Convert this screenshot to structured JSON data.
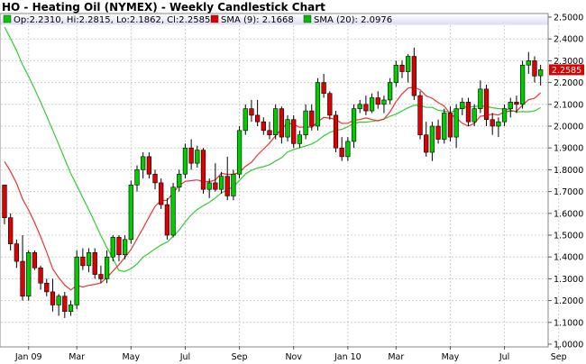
{
  "chart_data": {
    "type": "candlestick",
    "title": "HO - Heating Oil (NYMEX) - Weekly Candlestick Chart",
    "ohlc_label": "Op:2.2310, Hi:2.2815, Lo:2.1862, Cl:2.2585",
    "legend": [
      {
        "name": "SMA (9): 2.1668",
        "color": "#dd0000"
      },
      {
        "name": "SMA (20): 2.0976",
        "color": "#00bb00"
      }
    ],
    "last_price_label": "2.2585",
    "last_price": 2.2585,
    "ylim": [
      1.0,
      2.5
    ],
    "y_ticks": [
      "1.0000",
      "1.1000",
      "1.2000",
      "1.3000",
      "1.4000",
      "1.5000",
      "1.6000",
      "1.7000",
      "1.8000",
      "1.9000",
      "2.0000",
      "2.1000",
      "2.2000",
      "2.3000",
      "2.4000",
      "2.5000"
    ],
    "x_ticks": [
      {
        "label": "Jan 09",
        "week": 4
      },
      {
        "label": "Mar",
        "week": 12
      },
      {
        "label": "May",
        "week": 21
      },
      {
        "label": "Jul",
        "week": 30
      },
      {
        "label": "Sep",
        "week": 39
      },
      {
        "label": "Nov",
        "week": 48
      },
      {
        "label": "Jan 10",
        "week": 57
      },
      {
        "label": "Mar",
        "week": 65
      },
      {
        "label": "May",
        "week": 74
      },
      {
        "label": "Jul",
        "week": 83
      },
      {
        "label": "Sep",
        "week": 92
      }
    ],
    "colors": {
      "up": "#00cc00",
      "down": "#dd0000",
      "sma9": "#ee3333",
      "sma20": "#33cc33",
      "label_box": "#dd0000"
    },
    "candles": [
      [
        1.73,
        1.73,
        1.55,
        1.58
      ],
      [
        1.58,
        1.6,
        1.43,
        1.46
      ],
      [
        1.46,
        1.48,
        1.35,
        1.38
      ],
      [
        1.38,
        1.5,
        1.2,
        1.22
      ],
      [
        1.22,
        1.43,
        1.2,
        1.42
      ],
      [
        1.42,
        1.43,
        1.34,
        1.35
      ],
      [
        1.35,
        1.36,
        1.25,
        1.28
      ],
      [
        1.28,
        1.3,
        1.22,
        1.24
      ],
      [
        1.24,
        1.3,
        1.15,
        1.18
      ],
      [
        1.18,
        1.23,
        1.13,
        1.22
      ],
      [
        1.22,
        1.24,
        1.12,
        1.15
      ],
      [
        1.15,
        1.2,
        1.13,
        1.18
      ],
      [
        1.18,
        1.43,
        1.16,
        1.4
      ],
      [
        1.4,
        1.44,
        1.34,
        1.36
      ],
      [
        1.36,
        1.44,
        1.33,
        1.42
      ],
      [
        1.42,
        1.44,
        1.3,
        1.32
      ],
      [
        1.32,
        1.36,
        1.28,
        1.3
      ],
      [
        1.3,
        1.43,
        1.28,
        1.4
      ],
      [
        1.4,
        1.5,
        1.38,
        1.49
      ],
      [
        1.49,
        1.5,
        1.38,
        1.41
      ],
      [
        1.41,
        1.5,
        1.39,
        1.48
      ],
      [
        1.48,
        1.75,
        1.46,
        1.73
      ],
      [
        1.73,
        1.82,
        1.7,
        1.8
      ],
      [
        1.8,
        1.88,
        1.76,
        1.86
      ],
      [
        1.86,
        1.88,
        1.76,
        1.78
      ],
      [
        1.78,
        1.8,
        1.71,
        1.74
      ],
      [
        1.74,
        1.76,
        1.62,
        1.64
      ],
      [
        1.64,
        1.67,
        1.48,
        1.5
      ],
      [
        1.5,
        1.74,
        1.49,
        1.72
      ],
      [
        1.72,
        1.8,
        1.7,
        1.78
      ],
      [
        1.78,
        1.92,
        1.76,
        1.9
      ],
      [
        1.9,
        1.94,
        1.8,
        1.83
      ],
      [
        1.83,
        1.91,
        1.81,
        1.89
      ],
      [
        1.89,
        1.9,
        1.69,
        1.71
      ],
      [
        1.71,
        1.76,
        1.67,
        1.74
      ],
      [
        1.74,
        1.83,
        1.7,
        1.71
      ],
      [
        1.71,
        1.79,
        1.69,
        1.77
      ],
      [
        1.77,
        1.86,
        1.66,
        1.68
      ],
      [
        1.68,
        1.8,
        1.66,
        1.78
      ],
      [
        1.78,
        2.0,
        1.76,
        1.98
      ],
      [
        1.98,
        2.1,
        1.96,
        2.08
      ],
      [
        2.08,
        2.12,
        2.02,
        2.05
      ],
      [
        2.05,
        2.12,
        2.0,
        2.02
      ],
      [
        2.02,
        2.04,
        1.96,
        1.98
      ],
      [
        1.98,
        2.02,
        1.94,
        1.96
      ],
      [
        1.96,
        2.1,
        1.94,
        2.08
      ],
      [
        2.08,
        2.09,
        1.92,
        1.95
      ],
      [
        1.95,
        2.05,
        1.93,
        2.03
      ],
      [
        2.03,
        2.05,
        1.9,
        1.92
      ],
      [
        1.92,
        1.98,
        1.9,
        1.96
      ],
      [
        1.96,
        2.1,
        1.94,
        2.07
      ],
      [
        2.07,
        2.1,
        1.98,
        2.0
      ],
      [
        2.0,
        2.22,
        1.98,
        2.2
      ],
      [
        2.2,
        2.24,
        2.13,
        2.15
      ],
      [
        2.15,
        2.16,
        2.03,
        2.05
      ],
      [
        2.05,
        2.07,
        1.88,
        1.9
      ],
      [
        1.9,
        1.95,
        1.84,
        1.86
      ],
      [
        1.86,
        1.95,
        1.84,
        1.93
      ],
      [
        1.93,
        2.1,
        1.9,
        2.08
      ],
      [
        2.08,
        2.12,
        2.06,
        2.1
      ],
      [
        2.1,
        2.14,
        2.05,
        2.07
      ],
      [
        2.07,
        2.15,
        2.06,
        2.13
      ],
      [
        2.13,
        2.16,
        2.08,
        2.1
      ],
      [
        2.1,
        2.14,
        2.06,
        2.12
      ],
      [
        2.12,
        2.22,
        2.1,
        2.2
      ],
      [
        2.2,
        2.3,
        2.18,
        2.28
      ],
      [
        2.28,
        2.3,
        2.22,
        2.25
      ],
      [
        2.25,
        2.33,
        2.2,
        2.32
      ],
      [
        2.32,
        2.36,
        2.12,
        2.14
      ],
      [
        2.14,
        2.16,
        1.94,
        1.96
      ],
      [
        1.96,
        2.02,
        1.86,
        1.88
      ],
      [
        1.88,
        2.02,
        1.84,
        2.0
      ],
      [
        2.0,
        2.03,
        1.92,
        1.94
      ],
      [
        1.94,
        2.08,
        1.92,
        2.06
      ],
      [
        2.06,
        2.09,
        1.93,
        1.95
      ],
      [
        1.95,
        2.1,
        1.9,
        2.08
      ],
      [
        2.08,
        2.13,
        2.05,
        2.11
      ],
      [
        2.11,
        2.13,
        2.0,
        2.02
      ],
      [
        2.02,
        2.1,
        2.0,
        2.08
      ],
      [
        2.08,
        2.21,
        2.06,
        2.17
      ],
      [
        2.17,
        2.19,
        2.0,
        2.03
      ],
      [
        2.03,
        2.06,
        1.96,
        2.0
      ],
      [
        2.0,
        2.04,
        1.95,
        2.02
      ],
      [
        2.02,
        2.1,
        2.0,
        2.08
      ],
      [
        2.08,
        2.13,
        2.04,
        2.11
      ],
      [
        2.11,
        2.14,
        2.06,
        2.1
      ],
      [
        2.1,
        2.3,
        2.08,
        2.28
      ],
      [
        2.28,
        2.34,
        2.24,
        2.3
      ],
      [
        2.3,
        2.32,
        2.2,
        2.23
      ],
      [
        2.231,
        2.2815,
        2.1862,
        2.2585
      ]
    ]
  }
}
